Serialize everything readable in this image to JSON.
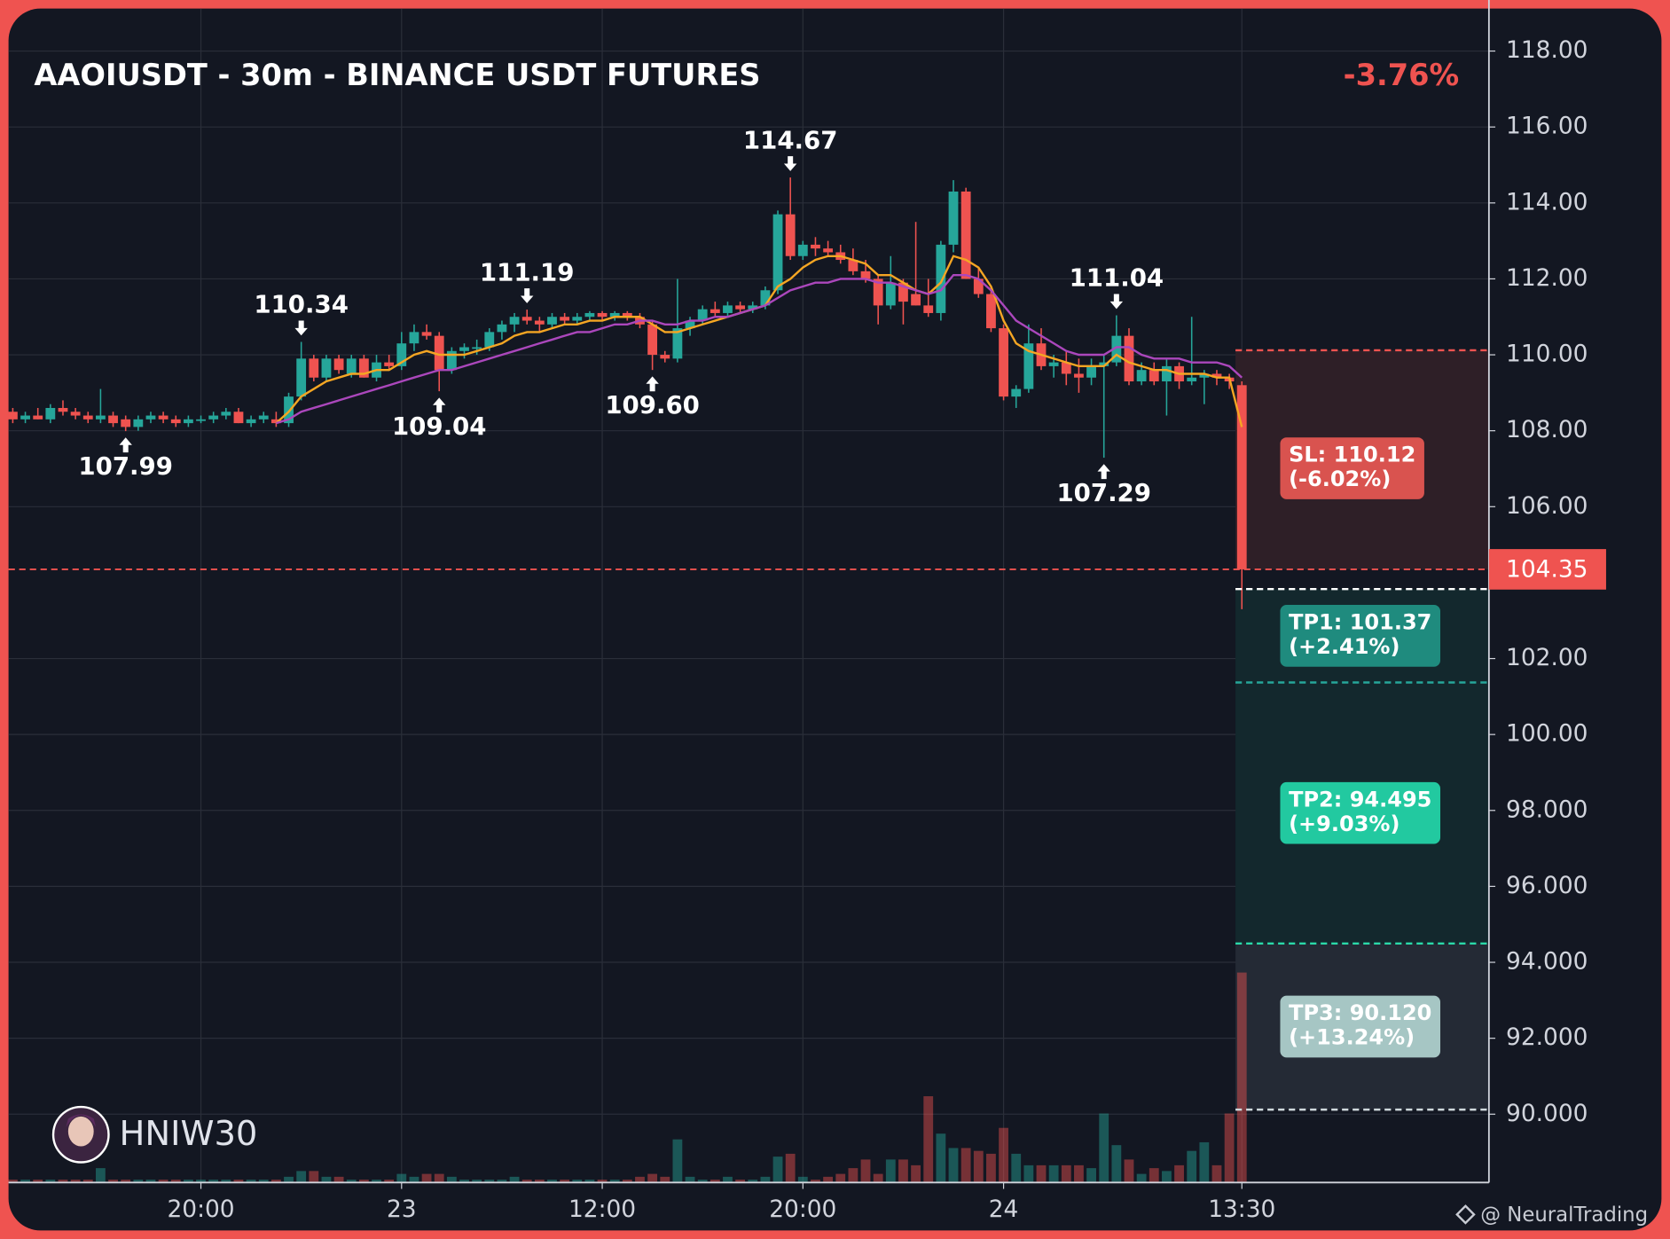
{
  "chart_data": {
    "type": "candlestick",
    "title": "AAOIUSDT - 30m - BINANCE USDT FUTURES",
    "change_label": "-3.76%",
    "xlim": [
      -0.34,
      117.7
    ],
    "xticks": [
      {
        "value": 15,
        "label": "20:00"
      },
      {
        "value": 31,
        "label": "23"
      },
      {
        "value": 47,
        "label": "12:00"
      },
      {
        "value": 63,
        "label": "20:00"
      },
      {
        "value": 79,
        "label": "24"
      },
      {
        "value": 98,
        "label": "13:30"
      }
    ],
    "ylim": [
      88.2,
      119.12
    ],
    "yticks": [
      {
        "value": 118,
        "label": "118.00"
      },
      {
        "value": 116,
        "label": "116.00"
      },
      {
        "value": 114,
        "label": "114.00"
      },
      {
        "value": 112,
        "label": "112.00"
      },
      {
        "value": 110,
        "label": "110.00"
      },
      {
        "value": 108,
        "label": "108.00"
      },
      {
        "value": 106,
        "label": "106.00"
      },
      {
        "value": 102,
        "label": "102.00"
      },
      {
        "value": 100,
        "label": "100.00"
      },
      {
        "value": 98,
        "label": "98.000"
      },
      {
        "value": 96,
        "label": "96.000"
      },
      {
        "value": 94,
        "label": "94.000"
      },
      {
        "value": 92,
        "label": "92.000"
      },
      {
        "value": 90,
        "label": "90.000"
      }
    ],
    "grid": true,
    "up_color": "#26a69a",
    "down_color": "#ef5350",
    "open": [
      108.5,
      108.3,
      108.4,
      108.3,
      108.6,
      108.5,
      108.4,
      108.3,
      108.4,
      108.3,
      108.1,
      108.3,
      108.4,
      108.3,
      108.2,
      108.3,
      108.3,
      108.4,
      108.5,
      108.2,
      108.3,
      108.3,
      108.2,
      108.9,
      109.9,
      109.4,
      109.9,
      109.5,
      109.9,
      109.4,
      109.8,
      109.7,
      110.3,
      110.6,
      110.5,
      109.6,
      110.1,
      110.2,
      110.2,
      110.6,
      110.8,
      111.0,
      110.9,
      110.8,
      111.0,
      110.9,
      111.0,
      111.1,
      111.0,
      111.1,
      111.0,
      110.8,
      110.0,
      109.9,
      110.7,
      110.9,
      111.2,
      111.1,
      111.3,
      111.2,
      111.3,
      111.7,
      113.7,
      112.6,
      112.9,
      112.8,
      112.7,
      112.5,
      112.2,
      112.0,
      111.3,
      111.9,
      111.6,
      111.3,
      111.1,
      112.9,
      114.3,
      112.0,
      111.6,
      110.7,
      108.9,
      109.1,
      110.3,
      109.7,
      109.8,
      109.5,
      109.4,
      109.7,
      109.8,
      110.5,
      109.3,
      109.6,
      109.3,
      109.7,
      109.3,
      109.4,
      109.5,
      109.4,
      109.2
    ],
    "high": [
      108.6,
      108.5,
      108.6,
      108.7,
      108.8,
      108.6,
      108.5,
      109.1,
      108.5,
      108.4,
      108.4,
      108.5,
      108.5,
      108.4,
      108.4,
      108.4,
      108.5,
      108.6,
      108.6,
      108.4,
      108.5,
      108.5,
      109.0,
      110.34,
      110.0,
      110.0,
      110.0,
      110.0,
      110.0,
      110.0,
      110.0,
      110.6,
      110.8,
      110.8,
      110.6,
      110.2,
      110.3,
      110.4,
      110.7,
      110.9,
      111.1,
      111.19,
      111.0,
      111.1,
      111.1,
      111.1,
      111.15,
      111.15,
      111.15,
      111.15,
      111.1,
      110.9,
      110.1,
      112.0,
      111.0,
      111.3,
      111.4,
      111.4,
      111.4,
      111.4,
      111.8,
      113.8,
      114.67,
      113.0,
      113.1,
      113.0,
      112.9,
      112.8,
      112.5,
      112.1,
      112.6,
      112.0,
      113.5,
      112.0,
      113.0,
      114.6,
      114.4,
      112.3,
      111.8,
      110.8,
      109.2,
      110.8,
      110.7,
      110.0,
      110.1,
      109.9,
      109.9,
      110.0,
      111.04,
      110.7,
      109.8,
      109.8,
      109.9,
      109.8,
      111.0,
      109.6,
      109.6,
      109.5,
      109.3
    ],
    "low": [
      108.2,
      108.2,
      108.3,
      108.2,
      108.4,
      108.3,
      108.2,
      108.2,
      108.1,
      107.99,
      108.0,
      108.2,
      108.2,
      108.1,
      108.1,
      108.2,
      108.2,
      108.3,
      108.2,
      108.1,
      108.2,
      108.1,
      108.1,
      108.8,
      109.3,
      109.3,
      109.5,
      109.4,
      109.4,
      109.3,
      109.6,
      109.6,
      110.1,
      110.4,
      109.04,
      109.5,
      109.9,
      110.0,
      110.1,
      110.4,
      110.6,
      110.8,
      110.6,
      110.7,
      110.8,
      110.8,
      110.9,
      110.9,
      110.9,
      110.9,
      110.7,
      109.6,
      109.8,
      109.8,
      110.5,
      110.8,
      111.0,
      111.0,
      111.1,
      111.1,
      111.2,
      111.6,
      112.5,
      112.5,
      112.6,
      112.6,
      112.4,
      112.1,
      111.9,
      110.8,
      111.2,
      110.8,
      111.3,
      111.0,
      110.9,
      112.7,
      112.0,
      111.5,
      110.6,
      108.8,
      108.6,
      109.0,
      109.6,
      109.4,
      109.2,
      109.0,
      109.2,
      107.29,
      109.7,
      109.2,
      109.2,
      109.2,
      108.4,
      109.1,
      109.2,
      108.7,
      109.2,
      109.1,
      103.3
    ],
    "close": [
      108.3,
      108.4,
      108.3,
      108.6,
      108.5,
      108.4,
      108.3,
      108.4,
      108.2,
      108.1,
      108.3,
      108.4,
      108.3,
      108.2,
      108.3,
      108.3,
      108.4,
      108.5,
      108.2,
      108.3,
      108.4,
      108.2,
      108.9,
      109.9,
      109.4,
      109.9,
      109.6,
      109.9,
      109.4,
      109.8,
      109.7,
      110.3,
      110.6,
      110.5,
      109.6,
      110.1,
      110.2,
      110.2,
      110.6,
      110.8,
      111.0,
      110.9,
      110.8,
      111.0,
      110.9,
      111.0,
      111.1,
      111.0,
      111.1,
      111.0,
      110.8,
      110.0,
      109.9,
      110.7,
      110.9,
      111.2,
      111.1,
      111.3,
      111.2,
      111.3,
      111.7,
      113.7,
      112.6,
      112.9,
      112.8,
      112.7,
      112.5,
      112.2,
      112.0,
      111.3,
      111.9,
      111.4,
      111.3,
      111.1,
      112.9,
      114.3,
      112.0,
      111.6,
      110.7,
      108.9,
      109.1,
      110.3,
      109.7,
      109.8,
      109.5,
      109.4,
      109.7,
      109.8,
      110.5,
      109.3,
      109.6,
      109.3,
      109.7,
      109.3,
      109.4,
      109.5,
      109.4,
      109.3,
      104.35
    ],
    "volume": [
      1,
      1,
      1,
      1,
      1,
      1,
      1,
      5,
      1,
      1,
      1,
      1,
      1,
      1,
      1,
      1,
      1,
      1,
      1,
      1,
      1,
      1,
      2,
      4,
      4,
      2,
      2,
      1,
      1,
      1,
      1,
      3,
      2,
      3,
      3,
      2,
      1,
      1,
      1,
      1,
      2,
      1,
      1,
      1,
      1,
      1,
      1,
      1,
      1,
      1,
      2,
      3,
      2,
      15,
      2,
      1,
      1,
      2,
      1,
      1,
      2,
      9,
      10,
      2,
      1,
      2,
      3,
      5,
      8,
      3,
      8,
      8,
      6,
      30,
      17,
      12,
      12,
      11,
      10,
      19,
      10,
      6,
      6,
      6,
      6,
      6,
      5,
      24,
      13,
      8,
      3,
      5,
      4,
      6,
      11,
      14,
      6,
      24,
      73
    ],
    "volume_lim": [
      0,
      100
    ],
    "lines": [
      {
        "color": "#f5a623",
        "values": [
          null,
          null,
          null,
          null,
          null,
          null,
          null,
          null,
          null,
          null,
          null,
          null,
          null,
          null,
          null,
          null,
          null,
          null,
          null,
          null,
          null,
          108.2,
          108.5,
          108.9,
          109.1,
          109.3,
          109.4,
          109.5,
          109.5,
          109.6,
          109.6,
          109.8,
          110.0,
          110.1,
          110.0,
          110.0,
          110.0,
          110.1,
          110.2,
          110.3,
          110.5,
          110.6,
          110.6,
          110.7,
          110.8,
          110.8,
          110.9,
          110.9,
          111.0,
          111.0,
          111.0,
          110.8,
          110.6,
          110.6,
          110.7,
          110.8,
          110.9,
          111.0,
          111.1,
          111.2,
          111.3,
          111.8,
          112.0,
          112.3,
          112.5,
          112.6,
          112.6,
          112.5,
          112.4,
          112.1,
          112.1,
          111.9,
          111.7,
          111.6,
          111.9,
          112.6,
          112.5,
          112.3,
          111.8,
          110.9,
          110.3,
          110.1,
          110.0,
          109.9,
          109.8,
          109.7,
          109.7,
          109.7,
          110.0,
          109.8,
          109.7,
          109.6,
          109.6,
          109.5,
          109.5,
          109.5,
          109.4,
          109.4,
          108.1
        ]
      },
      {
        "color": "#ab47bc",
        "values": [
          null,
          null,
          null,
          null,
          null,
          null,
          null,
          null,
          null,
          null,
          null,
          null,
          null,
          null,
          null,
          null,
          null,
          null,
          null,
          null,
          null,
          108.2,
          108.3,
          108.5,
          108.6,
          108.7,
          108.8,
          108.9,
          109.0,
          109.1,
          109.2,
          109.3,
          109.4,
          109.5,
          109.6,
          109.6,
          109.7,
          109.8,
          109.9,
          110.0,
          110.1,
          110.2,
          110.3,
          110.4,
          110.5,
          110.6,
          110.6,
          110.7,
          110.8,
          110.8,
          110.9,
          110.9,
          110.8,
          110.8,
          110.9,
          110.9,
          111.0,
          111.0,
          111.1,
          111.2,
          111.3,
          111.5,
          111.7,
          111.8,
          111.9,
          111.9,
          112.0,
          112.0,
          112.0,
          111.9,
          111.9,
          111.8,
          111.7,
          111.6,
          111.7,
          112.1,
          112.1,
          112.0,
          111.7,
          111.3,
          110.9,
          110.7,
          110.5,
          110.3,
          110.1,
          110.0,
          110.0,
          110.0,
          110.2,
          110.2,
          110.0,
          109.9,
          109.9,
          109.9,
          109.8,
          109.8,
          109.8,
          109.7,
          109.4
        ]
      }
    ],
    "last_price": 104.35,
    "annotations": [
      {
        "index": 9,
        "value": 107.99,
        "label": "107.99",
        "position": "below"
      },
      {
        "index": 23,
        "value": 110.34,
        "label": "110.34",
        "position": "above"
      },
      {
        "index": 34,
        "value": 109.04,
        "label": "109.04",
        "position": "below"
      },
      {
        "index": 41,
        "value": 111.19,
        "label": "111.19",
        "position": "above"
      },
      {
        "index": 51,
        "value": 109.6,
        "label": "109.60",
        "position": "below"
      },
      {
        "index": 62,
        "value": 114.67,
        "label": "114.67",
        "position": "above"
      },
      {
        "index": 87,
        "value": 107.29,
        "label": "107.29",
        "position": "below"
      },
      {
        "index": 88,
        "value": 111.04,
        "label": "111.04",
        "position": "above"
      }
    ],
    "trade": {
      "entry": 103.83,
      "levels": [
        {
          "label": "SL: 110.12",
          "change": "(-6.02%)",
          "value": 110.12,
          "color": "#d9534f",
          "line_color": "#ef5350"
        },
        {
          "label": "TP1: 101.37",
          "change": "(+2.41%)",
          "value": 101.37,
          "color": "#1f8b7e",
          "line_color": "#26a69a"
        },
        {
          "label": "TP2: 94.495",
          "change": "(+9.03%)",
          "value": 94.495,
          "color": "#22c9a0",
          "line_color": "#2bd9a9"
        },
        {
          "label": "TP3: 90.120",
          "change": "(+13.24%)",
          "value": 90.12,
          "color": "#a6c6c4",
          "line_color": "#cfd8dc"
        }
      ]
    },
    "watermark": "HNIW30",
    "footer": "@ NeuralTrading"
  }
}
